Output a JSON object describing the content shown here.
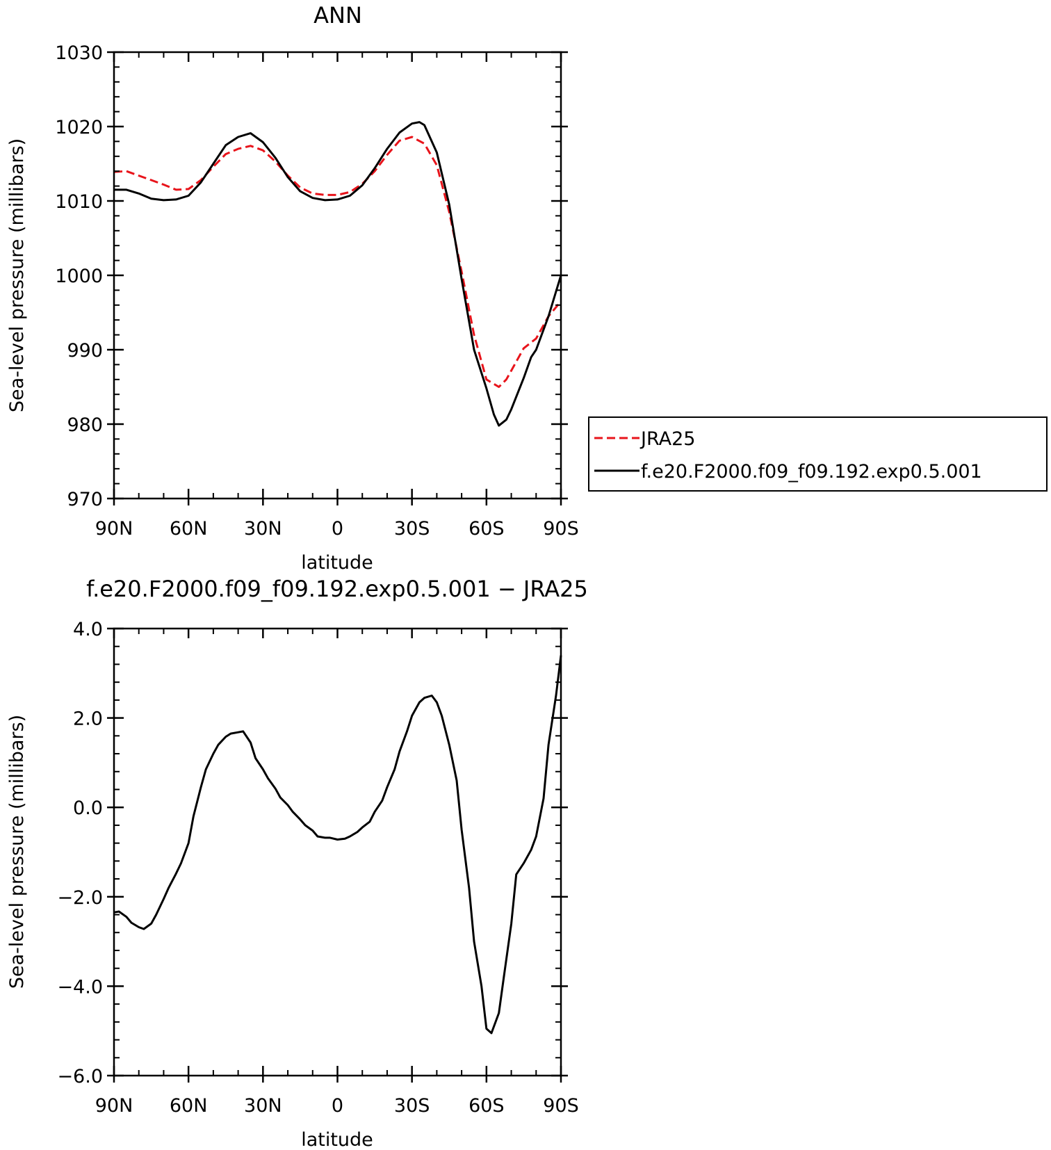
{
  "chart_data": [
    {
      "type": "line",
      "title": "ANN",
      "xlabel": "latitude",
      "ylabel": "Sea-level pressure (millibars)",
      "xlim": [
        90,
        -90
      ],
      "ylim": [
        970,
        1030
      ],
      "xticks": [
        {
          "value": 90,
          "label": "90N"
        },
        {
          "value": 60,
          "label": "60N"
        },
        {
          "value": 30,
          "label": "30N"
        },
        {
          "value": 0,
          "label": "0"
        },
        {
          "value": -30,
          "label": "30S"
        },
        {
          "value": -60,
          "label": "60S"
        },
        {
          "value": -90,
          "label": "90S"
        }
      ],
      "yticks": [
        {
          "value": 970,
          "label": "970"
        },
        {
          "value": 980,
          "label": "980"
        },
        {
          "value": 990,
          "label": "990"
        },
        {
          "value": 1000,
          "label": "1000"
        },
        {
          "value": 1010,
          "label": "1010"
        },
        {
          "value": 1020,
          "label": "1020"
        },
        {
          "value": 1030,
          "label": "1030"
        }
      ],
      "legend_position": "right",
      "series": [
        {
          "name": "JRA25",
          "color": "#e8141b",
          "dash": "dashed",
          "x": [
            90,
            85,
            80,
            75,
            70,
            65,
            60,
            55,
            50,
            45,
            40,
            35,
            30,
            25,
            20,
            15,
            10,
            5,
            0,
            -5,
            -10,
            -15,
            -20,
            -25,
            -30,
            -35,
            -40,
            -45,
            -50,
            -55,
            -60,
            -65,
            -68,
            -70,
            -75,
            -80,
            -85,
            -90
          ],
          "y": [
            1013.9,
            1014.0,
            1013.4,
            1012.8,
            1012.2,
            1011.5,
            1011.6,
            1012.8,
            1014.6,
            1016.3,
            1017.0,
            1017.4,
            1016.8,
            1015.3,
            1013.4,
            1011.8,
            1011.0,
            1010.8,
            1010.8,
            1011.2,
            1012.3,
            1014.0,
            1016.2,
            1018.1,
            1018.6,
            1017.7,
            1014.8,
            1008.5,
            1000.5,
            992.0,
            986.0,
            985.0,
            986.0,
            987.2,
            990.2,
            991.5,
            994.5,
            996.5
          ]
        },
        {
          "name": "f.e20.F2000.f09_f09.192.exp0.5.001",
          "color": "#000000",
          "dash": "solid",
          "x": [
            90,
            85,
            80,
            75,
            70,
            65,
            60,
            55,
            50,
            45,
            40,
            35,
            30,
            25,
            20,
            15,
            10,
            5,
            0,
            -5,
            -10,
            -15,
            -20,
            -25,
            -30,
            -33,
            -35,
            -40,
            -45,
            -50,
            -55,
            -60,
            -63,
            -65,
            -68,
            -70,
            -75,
            -78,
            -80,
            -85,
            -90
          ],
          "y": [
            1011.5,
            1011.5,
            1011.0,
            1010.3,
            1010.1,
            1010.2,
            1010.7,
            1012.5,
            1015.0,
            1017.5,
            1018.6,
            1019.1,
            1017.9,
            1015.8,
            1013.2,
            1011.3,
            1010.4,
            1010.1,
            1010.2,
            1010.7,
            1012.1,
            1014.4,
            1017.0,
            1019.2,
            1020.4,
            1020.6,
            1020.2,
            1016.5,
            1009.5,
            999.5,
            990.0,
            984.8,
            981.3,
            979.8,
            980.6,
            982.0,
            986.2,
            989.0,
            990.0,
            994.5,
            1000.0
          ]
        }
      ]
    },
    {
      "type": "line",
      "title": "f.e20.F2000.f09_f09.192.exp0.5.001 − JRA25",
      "xlabel": "latitude",
      "ylabel": "Sea-level pressure (millibars)",
      "xlim": [
        90,
        -90
      ],
      "ylim": [
        -6.0,
        4.0
      ],
      "xticks": [
        {
          "value": 90,
          "label": "90N"
        },
        {
          "value": 60,
          "label": "60N"
        },
        {
          "value": 30,
          "label": "30N"
        },
        {
          "value": 0,
          "label": "0"
        },
        {
          "value": -30,
          "label": "30S"
        },
        {
          "value": -60,
          "label": "60S"
        },
        {
          "value": -90,
          "label": "90S"
        }
      ],
      "yticks": [
        {
          "value": -6.0,
          "label": "−6.0"
        },
        {
          "value": -4.0,
          "label": "−4.0"
        },
        {
          "value": -2.0,
          "label": "−2.0"
        },
        {
          "value": 0.0,
          "label": "0.0"
        },
        {
          "value": 2.0,
          "label": "2.0"
        },
        {
          "value": 4.0,
          "label": "4.0"
        }
      ],
      "series": [
        {
          "color": "#000000",
          "dash": "solid",
          "x": [
            90,
            88,
            85,
            83,
            80,
            78,
            75,
            73,
            70,
            68,
            65,
            63,
            60,
            58,
            55,
            53,
            50,
            48,
            45,
            43,
            40,
            38,
            35,
            33,
            30,
            28,
            25,
            23,
            20,
            18,
            15,
            13,
            10,
            8,
            5,
            3,
            0,
            -3,
            -5,
            -8,
            -10,
            -13,
            -15,
            -18,
            -20,
            -23,
            -25,
            -28,
            -30,
            -33,
            -35,
            -38,
            -40,
            -42,
            -45,
            -48,
            -50,
            -53,
            -55,
            -58,
            -60,
            -62,
            -65,
            -67,
            -70,
            -72,
            -75,
            -78,
            -80,
            -83,
            -85,
            -88,
            -90
          ],
          "y": [
            -2.35,
            -2.33,
            -2.45,
            -2.58,
            -2.68,
            -2.72,
            -2.6,
            -2.4,
            -2.05,
            -1.8,
            -1.48,
            -1.25,
            -0.8,
            -0.2,
            0.45,
            0.85,
            1.2,
            1.4,
            1.58,
            1.65,
            1.68,
            1.7,
            1.45,
            1.1,
            0.85,
            0.65,
            0.42,
            0.22,
            0.05,
            -0.1,
            -0.27,
            -0.4,
            -0.52,
            -0.65,
            -0.68,
            -0.68,
            -0.72,
            -0.7,
            -0.65,
            -0.55,
            -0.45,
            -0.32,
            -0.1,
            0.15,
            0.45,
            0.85,
            1.25,
            1.7,
            2.05,
            2.35,
            2.45,
            2.5,
            2.35,
            2.05,
            1.4,
            0.6,
            -0.5,
            -1.8,
            -3.0,
            -4.0,
            -4.95,
            -5.05,
            -4.6,
            -3.8,
            -2.6,
            -1.5,
            -1.25,
            -0.95,
            -0.65,
            0.2,
            1.4,
            2.5,
            3.4
          ]
        }
      ]
    }
  ]
}
